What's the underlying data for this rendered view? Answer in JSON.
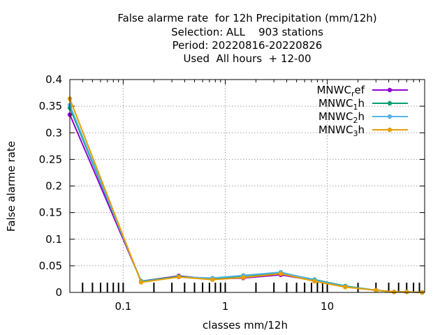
{
  "chart_data": {
    "type": "line",
    "title_lines": [
      "False alarme rate  for 12h Precipitation (mm/12h)",
      "Selection: ALL    903 stations",
      "Period: 20220816-20220826",
      "Used  All hours  + 12-00"
    ],
    "xlabel": "classes mm/12h",
    "ylabel": "False alarme rate",
    "xscale": "log",
    "xlim": [
      0.03,
      90
    ],
    "ylim": [
      0,
      0.4
    ],
    "x_ticks": [
      "0.1",
      "1",
      "10"
    ],
    "y_ticks": [
      "0",
      "0.05",
      "0.1",
      "0.15",
      "0.2",
      "0.25",
      "0.3",
      "0.35",
      "0.4"
    ],
    "grid": true,
    "legend_position": "top-right",
    "x": [
      0.03,
      0.15,
      0.35,
      0.75,
      1.5,
      3.5,
      7.5,
      15,
      30,
      45,
      60,
      85
    ],
    "series": [
      {
        "name": "MNWC_ref",
        "color": "#9400d3",
        "values": [
          0.334,
          0.021,
          0.031,
          0.025,
          0.027,
          0.033,
          0.022,
          0.011,
          0.004,
          0.001,
          0.001,
          0.0
        ]
      },
      {
        "name": "MNWC_1h",
        "color": "#009e73",
        "values": [
          0.347,
          0.021,
          0.03,
          0.026,
          0.031,
          0.037,
          0.024,
          0.012,
          0.004,
          0.001,
          0.001,
          0.0
        ]
      },
      {
        "name": "MNWC_2h",
        "color": "#56b4e9",
        "values": [
          0.352,
          0.02,
          0.029,
          0.027,
          0.032,
          0.038,
          0.023,
          0.011,
          0.004,
          0.001,
          0.001,
          0.0
        ]
      },
      {
        "name": "MNWC_3h",
        "color": "#e69f00",
        "values": [
          0.364,
          0.019,
          0.029,
          0.024,
          0.028,
          0.035,
          0.021,
          0.01,
          0.004,
          0.001,
          0.001,
          0.0
        ]
      }
    ],
    "legend": [
      {
        "base": "MNWC",
        "sub": "r",
        "rest": "ef"
      },
      {
        "base": "MNWC",
        "sub": "1",
        "rest": "h"
      },
      {
        "base": "MNWC",
        "sub": "2",
        "rest": "h"
      },
      {
        "base": "MNWC",
        "sub": "3",
        "rest": "h"
      }
    ]
  }
}
